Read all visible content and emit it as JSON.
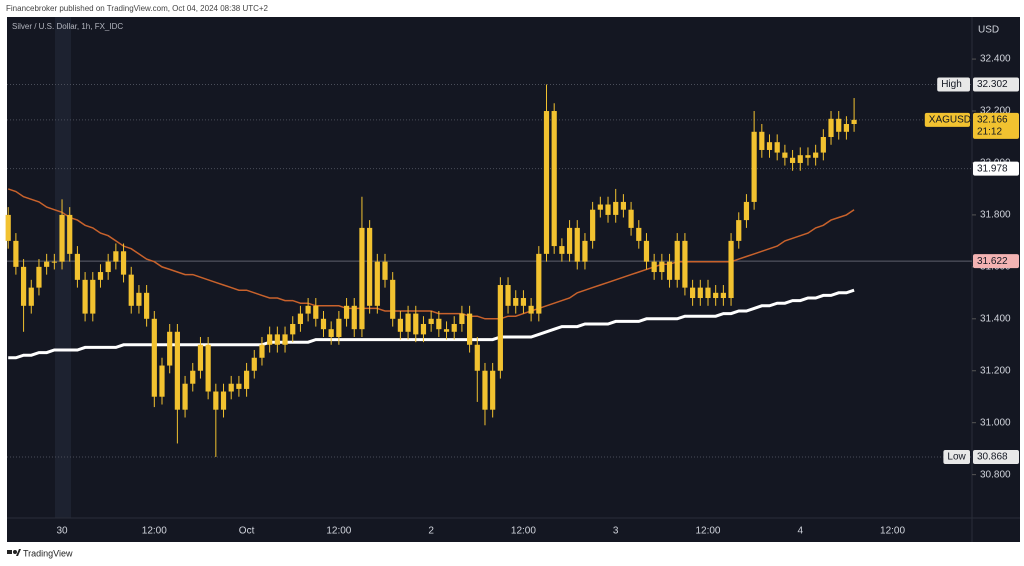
{
  "header": "Financebroker published on TradingView.com, Oct 04, 2024 08:38 UTC+2",
  "footer": "TradingView",
  "chart_data": {
    "type": "candlestick",
    "title": "Silver / U.S. Dollar, 1h, FX_IDC",
    "y_axis_label": "USD",
    "color": "#f2c230",
    "grid": false,
    "ylim": [
      30.633,
      32.562
    ],
    "yticks": [
      {
        "value": 32.4,
        "label": "32.400"
      },
      {
        "value": 32.2,
        "label": "32.200"
      },
      {
        "value": 32.0,
        "label": "32.000"
      },
      {
        "value": 31.8,
        "label": "31.800"
      },
      {
        "value": 31.6,
        "label": "31.600"
      },
      {
        "value": 31.4,
        "label": "31.400"
      },
      {
        "value": 31.2,
        "label": "31.200"
      },
      {
        "value": 31.0,
        "label": "31.000"
      },
      {
        "value": 30.8,
        "label": "30.800"
      }
    ],
    "categories": [
      null,
      null,
      null,
      null,
      null,
      null,
      null,
      "30",
      null,
      null,
      null,
      null,
      null,
      null,
      null,
      null,
      null,
      null,
      null,
      "12:00",
      null,
      null,
      null,
      null,
      null,
      null,
      null,
      null,
      null,
      null,
      null,
      "Oct",
      null,
      null,
      null,
      null,
      null,
      null,
      null,
      null,
      null,
      null,
      null,
      "12:00",
      null,
      null,
      null,
      null,
      null,
      null,
      null,
      null,
      null,
      null,
      null,
      "2",
      null,
      null,
      null,
      null,
      null,
      null,
      null,
      null,
      null,
      null,
      null,
      "12:00",
      null,
      null,
      null,
      null,
      null,
      null,
      null,
      null,
      null,
      null,
      null,
      "3",
      null,
      null,
      null,
      null,
      null,
      null,
      null,
      null,
      null,
      null,
      null,
      "12:00",
      null,
      null,
      null,
      null,
      null,
      null,
      null,
      null,
      null,
      null,
      null,
      "4",
      null,
      null,
      null,
      null,
      null,
      null,
      null,
      null,
      null,
      null,
      null,
      "12:00"
    ],
    "open": [
      31.8,
      31.7,
      31.6,
      31.45,
      31.52,
      31.6,
      31.62,
      31.62,
      31.8,
      31.65,
      31.55,
      31.42,
      31.55,
      31.58,
      31.62,
      31.66,
      31.57,
      31.45,
      31.5,
      31.4,
      31.1,
      31.22,
      31.35,
      31.05,
      31.15,
      31.2,
      31.3,
      31.12,
      31.05,
      31.12,
      31.15,
      31.13,
      31.2,
      31.25,
      31.3,
      31.34,
      31.3,
      31.34,
      31.38,
      31.42,
      31.45,
      31.4,
      31.36,
      31.33,
      31.4,
      31.45,
      31.36,
      31.75,
      31.45,
      31.62,
      31.55,
      31.4,
      31.35,
      31.42,
      31.34,
      31.38,
      31.4,
      31.36,
      31.35,
      31.38,
      31.42,
      31.3,
      31.2,
      31.05,
      31.2,
      31.53,
      31.45,
      31.48,
      31.45,
      31.42,
      31.65,
      32.2,
      31.68,
      31.65,
      31.75,
      31.62,
      31.7,
      31.82,
      31.84,
      31.8,
      31.85,
      31.82,
      31.75,
      31.7,
      31.62,
      31.58,
      31.62,
      31.55,
      31.7,
      31.52,
      31.48,
      31.52,
      31.48,
      31.5,
      31.48,
      31.7,
      31.78,
      31.85,
      32.12,
      32.05,
      32.08,
      32.04,
      32.02,
      32.0,
      32.03,
      32.02,
      32.04,
      32.1,
      32.17,
      32.12,
      32.15,
      null,
      null,
      null,
      null,
      null
    ],
    "high": [
      31.83,
      31.73,
      31.63,
      31.55,
      31.63,
      31.65,
      31.65,
      31.86,
      31.83,
      31.68,
      31.58,
      31.58,
      31.61,
      31.65,
      31.69,
      31.69,
      31.6,
      31.53,
      31.53,
      31.43,
      31.25,
      31.38,
      31.38,
      31.18,
      31.23,
      31.33,
      31.33,
      31.15,
      31.15,
      31.18,
      31.18,
      31.23,
      31.28,
      31.33,
      31.37,
      31.37,
      31.37,
      31.41,
      31.45,
      31.48,
      31.48,
      31.43,
      31.39,
      31.43,
      31.48,
      31.48,
      31.87,
      31.78,
      31.65,
      31.65,
      31.58,
      31.43,
      31.45,
      31.45,
      31.41,
      31.43,
      31.43,
      31.39,
      31.41,
      31.45,
      31.45,
      31.33,
      31.23,
      31.23,
      31.56,
      31.56,
      31.51,
      31.51,
      31.48,
      31.68,
      32.302,
      32.23,
      31.71,
      31.78,
      31.78,
      31.73,
      31.85,
      31.87,
      31.87,
      31.9,
      31.88,
      31.85,
      31.78,
      31.73,
      31.65,
      31.65,
      31.65,
      31.73,
      31.73,
      31.55,
      31.55,
      31.55,
      31.53,
      31.53,
      31.73,
      31.81,
      31.88,
      32.2,
      32.15,
      32.11,
      32.11,
      32.07,
      32.05,
      32.06,
      32.06,
      32.07,
      32.13,
      32.2,
      32.2,
      32.18,
      32.25,
      null,
      null,
      null,
      null,
      null
    ],
    "low": [
      31.67,
      31.57,
      31.35,
      31.42,
      31.49,
      31.57,
      31.59,
      31.59,
      31.62,
      31.52,
      31.39,
      31.39,
      31.52,
      31.55,
      31.59,
      31.54,
      31.42,
      31.42,
      31.37,
      31.06,
      31.07,
      31.19,
      30.92,
      31.02,
      31.12,
      31.17,
      31.09,
      30.868,
      31.02,
      31.09,
      31.1,
      31.1,
      31.17,
      31.22,
      31.27,
      31.27,
      31.27,
      31.31,
      31.35,
      31.39,
      31.37,
      31.33,
      31.3,
      31.3,
      31.37,
      31.33,
      31.33,
      31.42,
      31.42,
      31.52,
      31.37,
      31.32,
      31.32,
      31.31,
      31.31,
      31.35,
      31.33,
      31.32,
      31.32,
      31.35,
      31.27,
      31.08,
      30.99,
      31.02,
      31.17,
      31.42,
      31.42,
      31.42,
      31.39,
      31.39,
      31.62,
      31.65,
      31.62,
      31.62,
      31.59,
      31.59,
      31.67,
      31.79,
      31.77,
      31.77,
      31.79,
      31.72,
      31.67,
      31.59,
      31.55,
      31.55,
      31.52,
      31.52,
      31.49,
      31.45,
      31.45,
      31.45,
      31.45,
      31.45,
      31.45,
      31.67,
      31.75,
      31.82,
      32.02,
      32.02,
      32.01,
      31.99,
      31.97,
      31.97,
      31.99,
      31.99,
      32.01,
      32.07,
      32.09,
      32.09,
      32.12,
      null,
      null,
      null,
      null,
      null
    ],
    "close": [
      31.7,
      31.6,
      31.45,
      31.52,
      31.6,
      31.62,
      31.62,
      31.8,
      31.65,
      31.55,
      31.42,
      31.55,
      31.58,
      31.62,
      31.66,
      31.57,
      31.45,
      31.5,
      31.4,
      31.1,
      31.22,
      31.35,
      31.05,
      31.15,
      31.2,
      31.3,
      31.12,
      31.05,
      31.12,
      31.15,
      31.13,
      31.2,
      31.25,
      31.3,
      31.34,
      31.3,
      31.34,
      31.38,
      31.42,
      31.45,
      31.4,
      31.36,
      31.33,
      31.4,
      31.45,
      31.36,
      31.75,
      31.45,
      31.62,
      31.55,
      31.4,
      31.35,
      31.42,
      31.34,
      31.38,
      31.4,
      31.36,
      31.35,
      31.38,
      31.42,
      31.3,
      31.2,
      31.05,
      31.2,
      31.53,
      31.45,
      31.48,
      31.45,
      31.42,
      31.65,
      32.2,
      31.68,
      31.65,
      31.75,
      31.62,
      31.7,
      31.82,
      31.84,
      31.8,
      31.85,
      31.82,
      31.75,
      31.7,
      31.62,
      31.58,
      31.62,
      31.55,
      31.7,
      31.52,
      31.48,
      31.52,
      31.48,
      31.5,
      31.48,
      31.7,
      31.78,
      31.85,
      32.12,
      32.05,
      32.08,
      32.04,
      32.02,
      32.0,
      32.03,
      32.02,
      32.04,
      32.1,
      32.17,
      32.12,
      32.15,
      32.166,
      null,
      null,
      null,
      null,
      null
    ],
    "moving_averages": [
      {
        "color": "#c8622c",
        "values": [
          31.9,
          31.89,
          31.87,
          31.86,
          31.85,
          31.83,
          31.82,
          31.81,
          31.79,
          31.78,
          31.76,
          31.75,
          31.73,
          31.72,
          31.7,
          31.68,
          31.67,
          31.65,
          31.63,
          31.62,
          31.6,
          31.59,
          31.58,
          31.57,
          31.57,
          31.56,
          31.55,
          31.54,
          31.53,
          31.52,
          31.51,
          31.51,
          31.5,
          31.49,
          31.48,
          31.48,
          31.47,
          31.47,
          31.46,
          31.46,
          31.45,
          31.45,
          31.45,
          31.45,
          31.44,
          31.44,
          31.44,
          31.44,
          31.44,
          31.43,
          31.43,
          31.43,
          31.43,
          31.43,
          31.43,
          31.43,
          31.42,
          31.42,
          31.42,
          31.42,
          31.41,
          31.41,
          31.4,
          31.4,
          31.4,
          31.41,
          31.41,
          31.42,
          31.43,
          31.44,
          31.45,
          31.46,
          31.47,
          31.48,
          31.5,
          31.51,
          31.52,
          31.53,
          31.54,
          31.55,
          31.56,
          31.57,
          31.58,
          31.59,
          31.6,
          31.61,
          31.61,
          31.62,
          31.62,
          31.62,
          31.62,
          31.62,
          31.62,
          31.62,
          31.62,
          31.63,
          31.64,
          31.65,
          31.66,
          31.67,
          31.68,
          31.7,
          31.71,
          31.72,
          31.73,
          31.75,
          31.76,
          31.78,
          31.79,
          31.8,
          31.82,
          null,
          null,
          null,
          null,
          null
        ]
      },
      {
        "color": "#ffffff",
        "values": [
          31.25,
          31.25,
          31.26,
          31.26,
          31.27,
          31.27,
          31.28,
          31.28,
          31.28,
          31.28,
          31.29,
          31.29,
          31.29,
          31.29,
          31.29,
          31.3,
          31.3,
          31.3,
          31.3,
          31.3,
          31.3,
          31.3,
          31.3,
          31.3,
          31.3,
          31.3,
          31.3,
          31.3,
          31.3,
          31.3,
          31.3,
          31.3,
          31.3,
          31.3,
          31.31,
          31.31,
          31.31,
          31.31,
          31.31,
          31.31,
          31.32,
          31.32,
          31.32,
          31.32,
          31.32,
          31.32,
          31.32,
          31.32,
          31.32,
          31.32,
          31.32,
          31.32,
          31.32,
          31.32,
          31.32,
          31.32,
          31.32,
          31.32,
          31.32,
          31.32,
          31.32,
          31.32,
          31.32,
          31.32,
          31.33,
          31.33,
          31.33,
          31.33,
          31.33,
          31.34,
          31.35,
          31.36,
          31.37,
          31.37,
          31.37,
          31.38,
          31.38,
          31.38,
          31.38,
          31.39,
          31.39,
          31.39,
          31.39,
          31.4,
          31.4,
          31.4,
          31.4,
          31.4,
          31.41,
          31.41,
          31.41,
          31.41,
          31.41,
          31.42,
          31.42,
          31.43,
          31.43,
          31.44,
          31.45,
          31.45,
          31.46,
          31.46,
          31.47,
          31.47,
          31.48,
          31.48,
          31.49,
          31.49,
          31.5,
          31.5,
          31.51,
          null,
          null,
          null,
          null,
          null
        ]
      }
    ],
    "price_labels": [
      {
        "label": "High",
        "value": 32.302,
        "color": "#e8e8e8"
      },
      {
        "label": "XAGUSD",
        "value": 32.166,
        "countdown": "21:12",
        "color": "#f2c230"
      },
      {
        "value": 31.978,
        "color": "#ffffff"
      },
      {
        "value": 31.622,
        "color": "#f3b3b3"
      },
      {
        "label": "Low",
        "value": 30.868,
        "color": "#e8e8e8"
      }
    ]
  }
}
